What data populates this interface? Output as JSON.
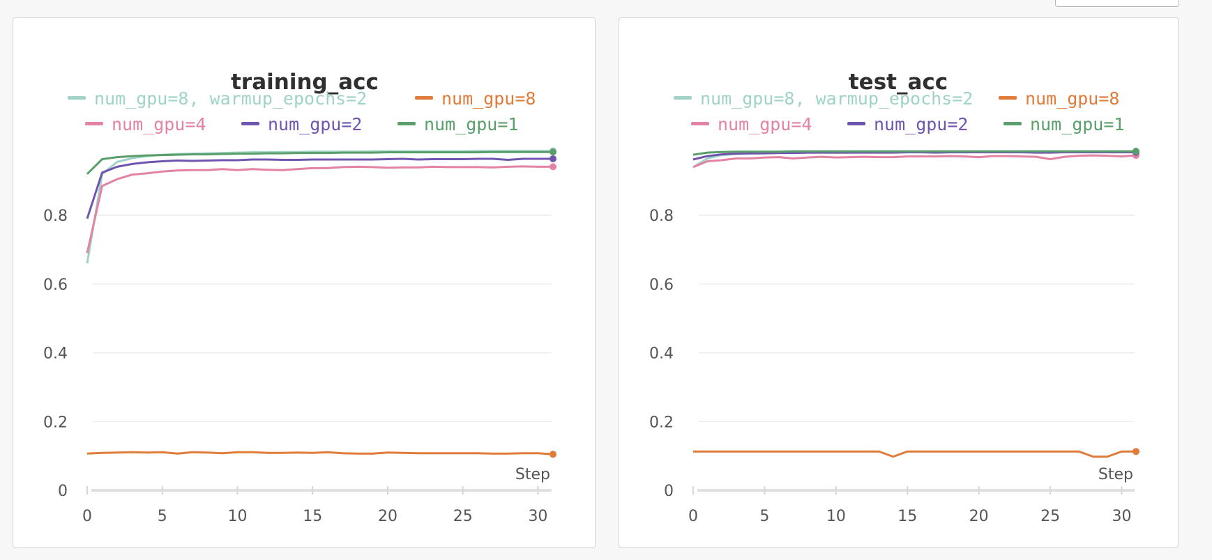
{
  "chart_data": [
    {
      "type": "line",
      "title": "training_acc",
      "xlabel": "Step",
      "ylabel": "",
      "xlim": [
        0,
        31
      ],
      "ylim": [
        0,
        1
      ],
      "xticks": [
        0,
        5,
        10,
        15,
        20,
        25,
        30
      ],
      "yticks": [
        0,
        0.2,
        0.4,
        0.6,
        0.8
      ],
      "grid": true,
      "legend_position": "top",
      "x": [
        0,
        1,
        2,
        3,
        4,
        5,
        6,
        7,
        8,
        9,
        10,
        11,
        12,
        13,
        14,
        15,
        16,
        17,
        18,
        19,
        20,
        21,
        22,
        23,
        24,
        25,
        26,
        27,
        28,
        29,
        30,
        31
      ],
      "series": [
        {
          "name": "num_gpu=8, warmup_epochs=2",
          "color": "#9fd3c7",
          "values": [
            0.66,
            0.92,
            0.955,
            0.966,
            0.972,
            0.976,
            0.978,
            0.979,
            0.98,
            0.981,
            0.982,
            0.983,
            0.983,
            0.984,
            0.984,
            0.985,
            0.985,
            0.985,
            0.985,
            0.986,
            0.986,
            0.986,
            0.986,
            0.986,
            0.986,
            0.986,
            0.987,
            0.987,
            0.987,
            0.987,
            0.987,
            0.987
          ]
        },
        {
          "name": "num_gpu=8",
          "color": "#e07b39",
          "values": [
            0.107,
            0.109,
            0.11,
            0.111,
            0.11,
            0.111,
            0.107,
            0.111,
            0.11,
            0.108,
            0.111,
            0.111,
            0.109,
            0.109,
            0.11,
            0.109,
            0.111,
            0.108,
            0.107,
            0.107,
            0.11,
            0.109,
            0.108,
            0.108,
            0.108,
            0.108,
            0.108,
            0.107,
            0.107,
            0.108,
            0.108,
            0.105
          ]
        },
        {
          "name": "num_gpu=4",
          "color": "#e382a5",
          "values": [
            0.69,
            0.885,
            0.905,
            0.918,
            0.922,
            0.927,
            0.93,
            0.931,
            0.931,
            0.934,
            0.931,
            0.934,
            0.932,
            0.931,
            0.934,
            0.937,
            0.937,
            0.94,
            0.941,
            0.94,
            0.938,
            0.939,
            0.939,
            0.941,
            0.94,
            0.94,
            0.94,
            0.939,
            0.941,
            0.942,
            0.941,
            0.941
          ]
        },
        {
          "name": "num_gpu=2",
          "color": "#6f55b0",
          "values": [
            0.79,
            0.924,
            0.941,
            0.949,
            0.954,
            0.957,
            0.959,
            0.958,
            0.959,
            0.96,
            0.96,
            0.962,
            0.962,
            0.961,
            0.961,
            0.962,
            0.962,
            0.962,
            0.962,
            0.962,
            0.963,
            0.964,
            0.962,
            0.963,
            0.963,
            0.963,
            0.964,
            0.964,
            0.961,
            0.964,
            0.964,
            0.964
          ]
        },
        {
          "name": "num_gpu=1",
          "color": "#5a9e6b",
          "values": [
            0.92,
            0.963,
            0.969,
            0.972,
            0.974,
            0.975,
            0.976,
            0.977,
            0.977,
            0.978,
            0.979,
            0.979,
            0.98,
            0.98,
            0.981,
            0.981,
            0.981,
            0.982,
            0.982,
            0.982,
            0.983,
            0.983,
            0.983,
            0.983,
            0.983,
            0.983,
            0.983,
            0.984,
            0.984,
            0.984,
            0.984,
            0.984
          ]
        }
      ]
    },
    {
      "type": "line",
      "title": "test_acc",
      "xlabel": "Step",
      "ylabel": "",
      "xlim": [
        0,
        31
      ],
      "ylim": [
        0,
        1
      ],
      "xticks": [
        0,
        5,
        10,
        15,
        20,
        25,
        30
      ],
      "yticks": [
        0,
        0.2,
        0.4,
        0.6,
        0.8
      ],
      "grid": true,
      "legend_position": "top",
      "x": [
        0,
        1,
        2,
        3,
        4,
        5,
        6,
        7,
        8,
        9,
        10,
        11,
        12,
        13,
        14,
        15,
        16,
        17,
        18,
        19,
        20,
        21,
        22,
        23,
        24,
        25,
        26,
        27,
        28,
        29,
        30,
        31
      ],
      "series": [
        {
          "name": "num_gpu=8, warmup_epochs=2",
          "color": "#9fd3c7",
          "values": [
            0.94,
            0.965,
            0.975,
            0.978,
            0.979,
            0.98,
            0.981,
            0.981,
            0.982,
            0.982,
            0.982,
            0.982,
            0.983,
            0.983,
            0.983,
            0.983,
            0.983,
            0.983,
            0.983,
            0.983,
            0.984,
            0.984,
            0.984,
            0.984,
            0.984,
            0.984,
            0.984,
            0.984,
            0.984,
            0.984,
            0.984,
            0.985
          ]
        },
        {
          "name": "num_gpu=8",
          "color": "#e07b39",
          "values": [
            0.113,
            0.113,
            0.113,
            0.113,
            0.113,
            0.113,
            0.113,
            0.113,
            0.113,
            0.113,
            0.113,
            0.113,
            0.113,
            0.113,
            0.098,
            0.113,
            0.113,
            0.113,
            0.113,
            0.113,
            0.113,
            0.113,
            0.113,
            0.113,
            0.113,
            0.113,
            0.113,
            0.113,
            0.098,
            0.098,
            0.113,
            0.113
          ]
        },
        {
          "name": "num_gpu=4",
          "color": "#e382a5",
          "values": [
            0.94,
            0.957,
            0.96,
            0.965,
            0.965,
            0.968,
            0.969,
            0.965,
            0.968,
            0.97,
            0.968,
            0.969,
            0.97,
            0.969,
            0.969,
            0.971,
            0.971,
            0.971,
            0.972,
            0.971,
            0.969,
            0.972,
            0.972,
            0.971,
            0.97,
            0.963,
            0.97,
            0.973,
            0.974,
            0.973,
            0.971,
            0.974
          ]
        },
        {
          "name": "num_gpu=2",
          "color": "#6f55b0",
          "values": [
            0.962,
            0.972,
            0.977,
            0.979,
            0.98,
            0.98,
            0.981,
            0.981,
            0.982,
            0.982,
            0.982,
            0.982,
            0.982,
            0.982,
            0.982,
            0.983,
            0.983,
            0.982,
            0.983,
            0.983,
            0.983,
            0.983,
            0.983,
            0.983,
            0.982,
            0.982,
            0.983,
            0.983,
            0.983,
            0.983,
            0.983,
            0.983
          ]
        },
        {
          "name": "num_gpu=1",
          "color": "#5a9e6b",
          "values": [
            0.976,
            0.982,
            0.984,
            0.985,
            0.985,
            0.985,
            0.985,
            0.986,
            0.986,
            0.986,
            0.986,
            0.986,
            0.986,
            0.986,
            0.986,
            0.986,
            0.986,
            0.986,
            0.986,
            0.986,
            0.986,
            0.986,
            0.986,
            0.986,
            0.986,
            0.986,
            0.986,
            0.986,
            0.986,
            0.986,
            0.986,
            0.986
          ]
        }
      ]
    }
  ]
}
